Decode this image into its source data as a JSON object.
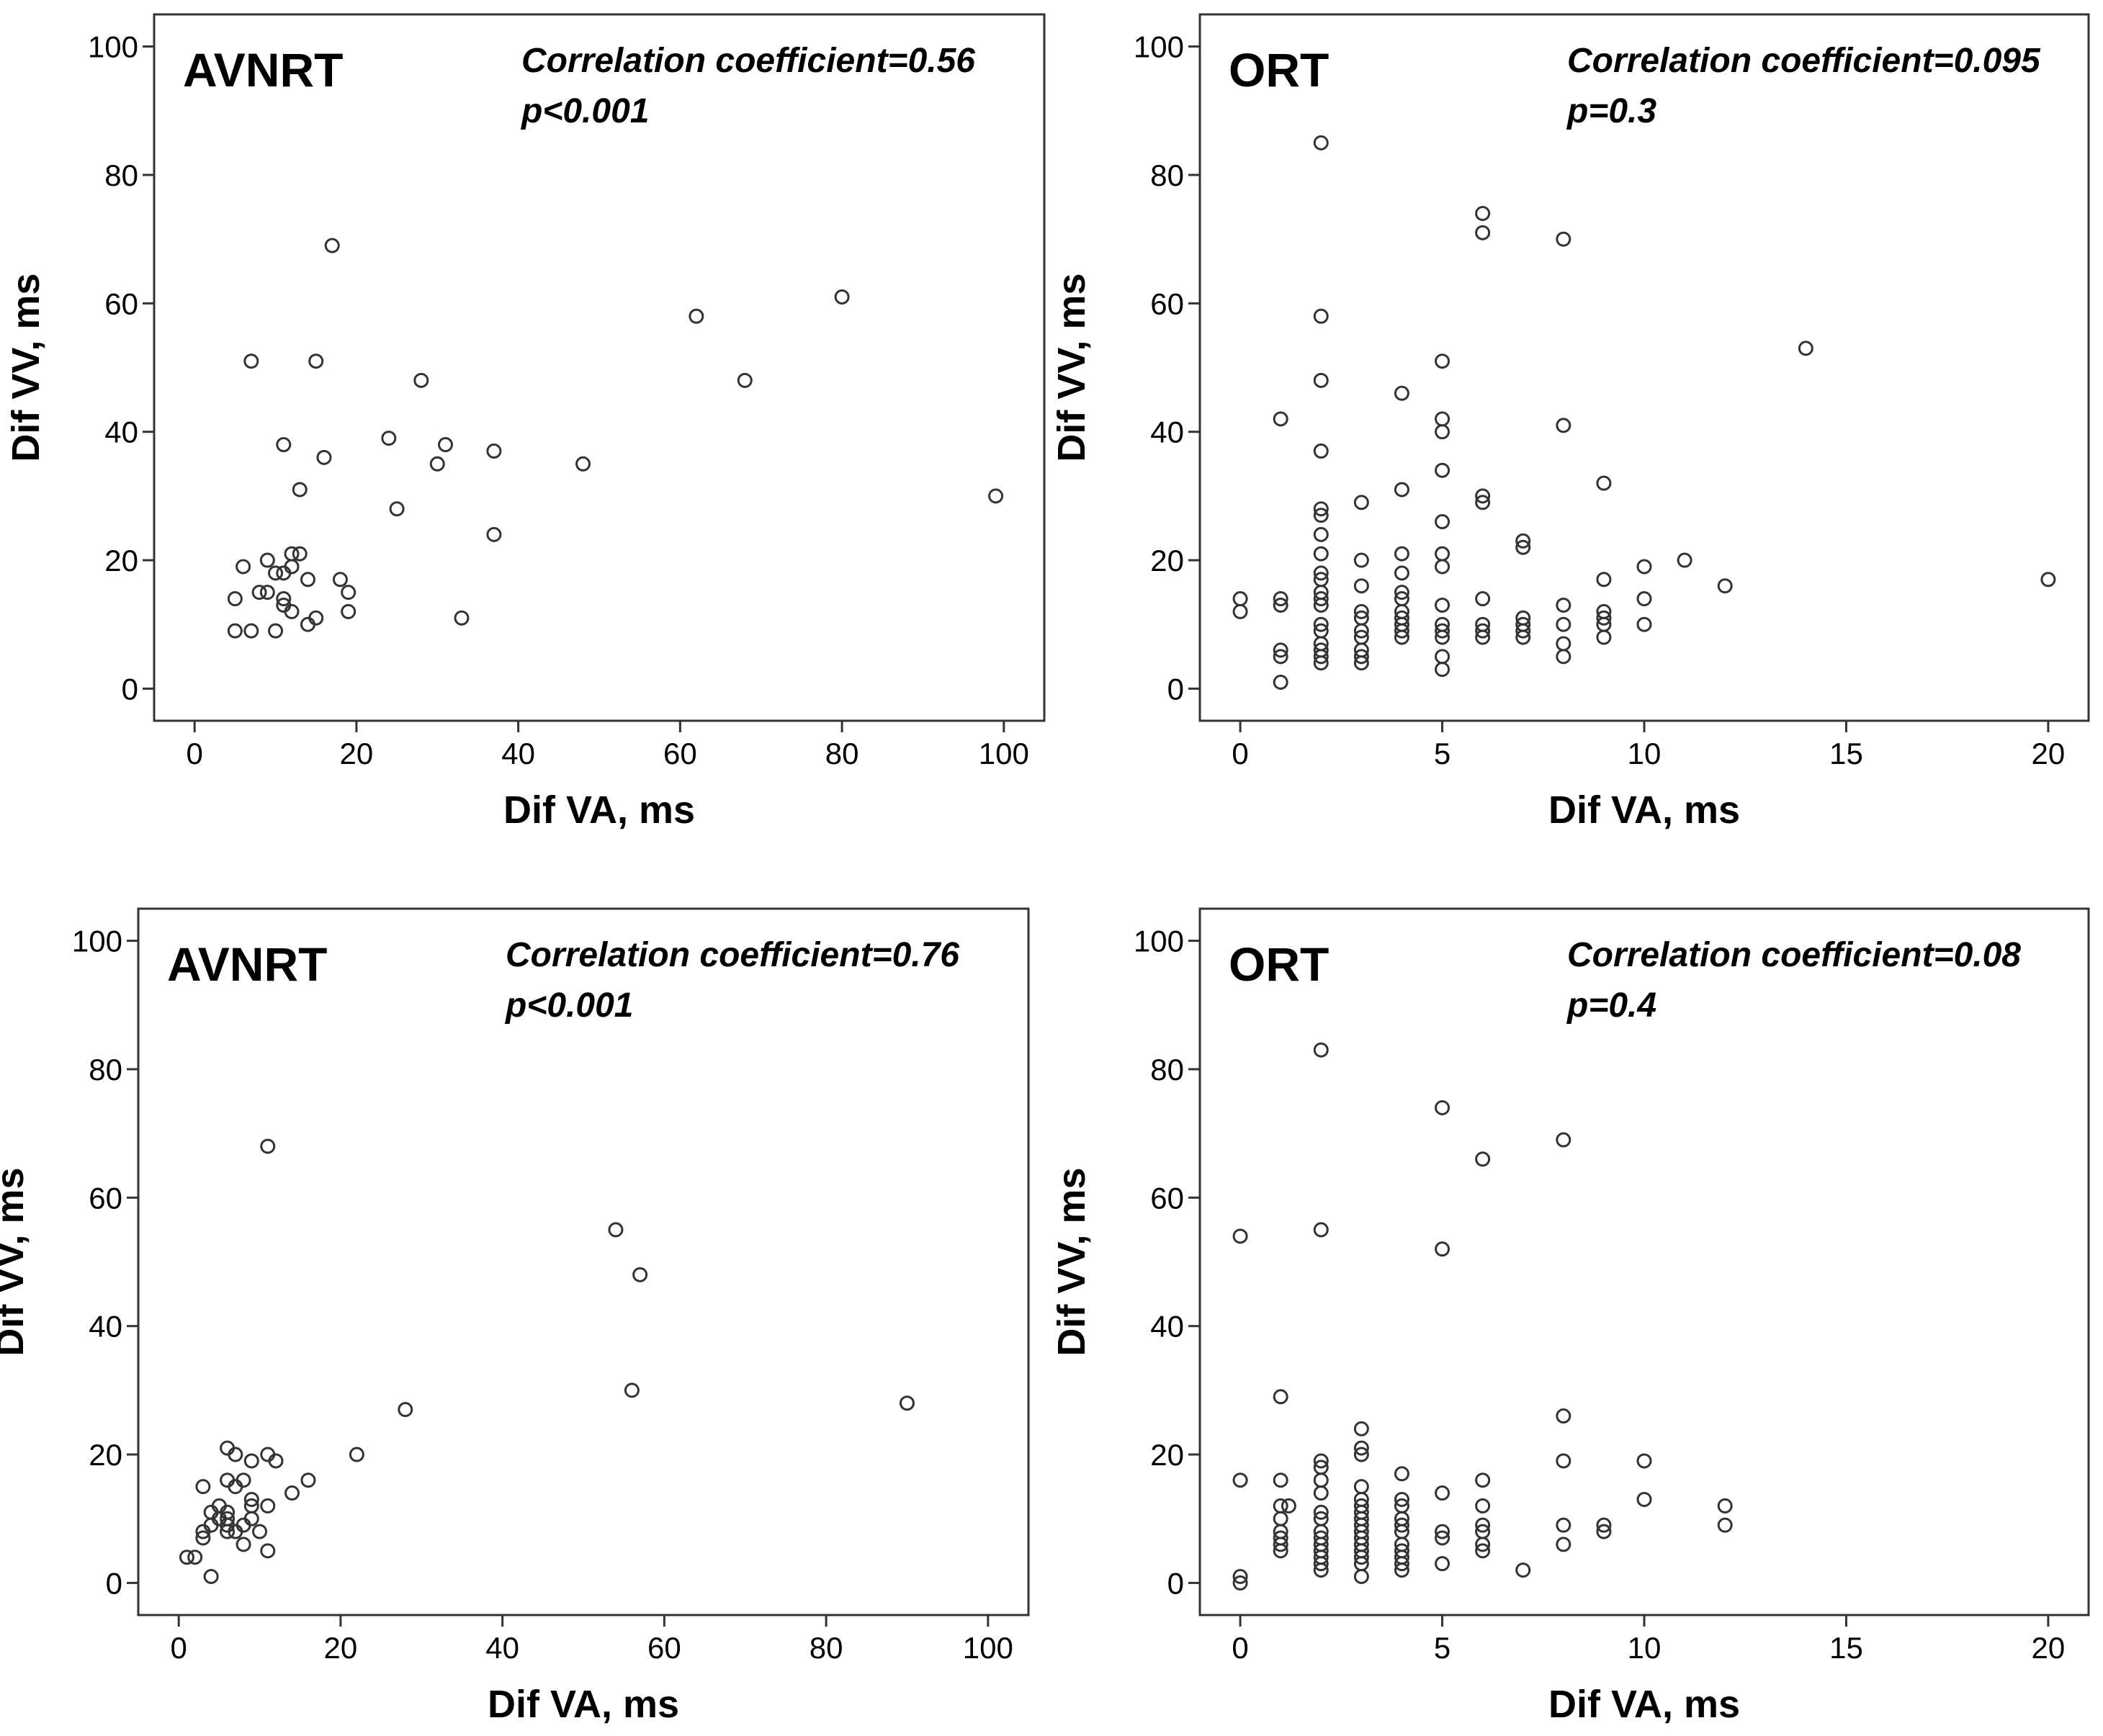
{
  "chart_data": [
    {
      "type": "scatter",
      "panel_label": "AVNRT",
      "annotation_line1": "Correlation coefficient=0.56",
      "annotation_line2": "p<0.001",
      "xlabel": "Dif VA, ms",
      "ylabel": "Dif VV, ms",
      "xlim": [
        -5,
        105
      ],
      "ylim": [
        -5,
        105
      ],
      "xticks": [
        0,
        20,
        40,
        60,
        80,
        100
      ],
      "yticks": [
        0,
        20,
        40,
        60,
        80,
        100
      ],
      "grid": false,
      "marker": "open-circle",
      "points": [
        [
          5,
          9
        ],
        [
          5,
          14
        ],
        [
          6,
          19
        ],
        [
          7,
          9
        ],
        [
          7,
          51
        ],
        [
          8,
          15
        ],
        [
          9,
          20
        ],
        [
          9,
          15
        ],
        [
          10,
          18
        ],
        [
          10,
          9
        ],
        [
          11,
          38
        ],
        [
          11,
          14
        ],
        [
          11,
          18
        ],
        [
          11,
          13
        ],
        [
          12,
          21
        ],
        [
          12,
          19
        ],
        [
          12,
          12
        ],
        [
          13,
          31
        ],
        [
          13,
          21
        ],
        [
          14,
          17
        ],
        [
          14,
          10
        ],
        [
          15,
          51
        ],
        [
          15,
          11
        ],
        [
          16,
          36
        ],
        [
          17,
          69
        ],
        [
          18,
          17
        ],
        [
          19,
          15
        ],
        [
          19,
          12
        ],
        [
          24,
          39
        ],
        [
          25,
          28
        ],
        [
          28,
          48
        ],
        [
          30,
          35
        ],
        [
          31,
          38
        ],
        [
          33,
          11
        ],
        [
          37,
          37
        ],
        [
          37,
          24
        ],
        [
          48,
          35
        ],
        [
          62,
          58
        ],
        [
          68,
          48
        ],
        [
          80,
          61
        ],
        [
          99,
          30
        ]
      ]
    },
    {
      "type": "scatter",
      "panel_label": "ORT",
      "annotation_line1": "Correlation coefficient=0.095",
      "annotation_line2": "p=0.3",
      "xlabel": "Dif VA, ms",
      "ylabel": "Dif VV, ms",
      "xlim": [
        -1,
        21
      ],
      "ylim": [
        -5,
        105
      ],
      "xticks": [
        0,
        5,
        10,
        15,
        20
      ],
      "yticks": [
        0,
        20,
        40,
        60,
        80,
        100
      ],
      "grid": false,
      "marker": "open-circle",
      "points": [
        [
          0,
          14
        ],
        [
          0,
          12
        ],
        [
          1,
          42
        ],
        [
          1,
          14
        ],
        [
          1,
          13
        ],
        [
          1,
          6
        ],
        [
          1,
          5
        ],
        [
          1,
          1
        ],
        [
          2,
          85
        ],
        [
          2,
          58
        ],
        [
          2,
          48
        ],
        [
          2,
          37
        ],
        [
          2,
          28
        ],
        [
          2,
          27
        ],
        [
          2,
          24
        ],
        [
          2,
          21
        ],
        [
          2,
          18
        ],
        [
          2,
          17
        ],
        [
          2,
          15
        ],
        [
          2,
          14
        ],
        [
          2,
          13
        ],
        [
          2,
          10
        ],
        [
          2,
          9
        ],
        [
          2,
          7
        ],
        [
          2,
          6
        ],
        [
          2,
          5
        ],
        [
          2,
          4
        ],
        [
          3,
          29
        ],
        [
          3,
          20
        ],
        [
          3,
          16
        ],
        [
          3,
          12
        ],
        [
          3,
          11
        ],
        [
          3,
          9
        ],
        [
          3,
          8
        ],
        [
          3,
          6
        ],
        [
          3,
          5
        ],
        [
          3,
          4
        ],
        [
          4,
          46
        ],
        [
          4,
          31
        ],
        [
          4,
          21
        ],
        [
          4,
          18
        ],
        [
          4,
          15
        ],
        [
          4,
          14
        ],
        [
          4,
          12
        ],
        [
          4,
          11
        ],
        [
          4,
          10
        ],
        [
          4,
          9
        ],
        [
          4,
          8
        ],
        [
          5,
          51
        ],
        [
          5,
          42
        ],
        [
          5,
          40
        ],
        [
          5,
          34
        ],
        [
          5,
          26
        ],
        [
          5,
          21
        ],
        [
          5,
          19
        ],
        [
          5,
          13
        ],
        [
          5,
          10
        ],
        [
          5,
          9
        ],
        [
          5,
          8
        ],
        [
          5,
          5
        ],
        [
          5,
          3
        ],
        [
          6,
          74
        ],
        [
          6,
          71
        ],
        [
          6,
          30
        ],
        [
          6,
          29
        ],
        [
          6,
          14
        ],
        [
          6,
          10
        ],
        [
          6,
          9
        ],
        [
          6,
          8
        ],
        [
          7,
          23
        ],
        [
          7,
          22
        ],
        [
          7,
          11
        ],
        [
          7,
          10
        ],
        [
          7,
          9
        ],
        [
          7,
          8
        ],
        [
          8,
          70
        ],
        [
          8,
          41
        ],
        [
          8,
          13
        ],
        [
          8,
          10
        ],
        [
          8,
          7
        ],
        [
          8,
          5
        ],
        [
          9,
          32
        ],
        [
          9,
          17
        ],
        [
          9,
          12
        ],
        [
          9,
          11
        ],
        [
          9,
          10
        ],
        [
          9,
          8
        ],
        [
          10,
          19
        ],
        [
          10,
          14
        ],
        [
          10,
          10
        ],
        [
          11,
          20
        ],
        [
          12,
          16
        ],
        [
          14,
          53
        ],
        [
          20,
          17
        ]
      ]
    },
    {
      "type": "scatter",
      "panel_label": "AVNRT",
      "annotation_line1": "Correlation coefficient=0.76",
      "annotation_line2": "p<0.001",
      "xlabel": "Dif VA, ms",
      "ylabel": "Dif VV, ms",
      "xlim": [
        -5,
        105
      ],
      "ylim": [
        -5,
        105
      ],
      "xticks": [
        0,
        20,
        40,
        60,
        80,
        100
      ],
      "yticks": [
        0,
        20,
        40,
        60,
        80,
        100
      ],
      "grid": false,
      "marker": "open-circle",
      "points": [
        [
          1,
          4
        ],
        [
          2,
          4
        ],
        [
          3,
          15
        ],
        [
          3,
          8
        ],
        [
          3,
          7
        ],
        [
          4,
          11
        ],
        [
          4,
          9
        ],
        [
          4,
          1
        ],
        [
          5,
          12
        ],
        [
          5,
          10
        ],
        [
          6,
          21
        ],
        [
          6,
          16
        ],
        [
          6,
          11
        ],
        [
          6,
          10
        ],
        [
          6,
          9
        ],
        [
          6,
          8
        ],
        [
          7,
          20
        ],
        [
          7,
          15
        ],
        [
          7,
          8
        ],
        [
          8,
          16
        ],
        [
          8,
          9
        ],
        [
          8,
          6
        ],
        [
          9,
          19
        ],
        [
          9,
          13
        ],
        [
          9,
          12
        ],
        [
          9,
          10
        ],
        [
          10,
          8
        ],
        [
          11,
          68
        ],
        [
          11,
          20
        ],
        [
          11,
          12
        ],
        [
          11,
          5
        ],
        [
          12,
          19
        ],
        [
          14,
          14
        ],
        [
          16,
          16
        ],
        [
          22,
          20
        ],
        [
          28,
          27
        ],
        [
          54,
          55
        ],
        [
          56,
          30
        ],
        [
          57,
          48
        ],
        [
          90,
          28
        ]
      ]
    },
    {
      "type": "scatter",
      "panel_label": "ORT",
      "annotation_line1": "Correlation coefficient=0.08",
      "annotation_line2": "p=0.4",
      "xlabel": "Dif VA, ms",
      "ylabel": "Dif VV, ms",
      "xlim": [
        -1,
        21
      ],
      "ylim": [
        -5,
        105
      ],
      "xticks": [
        0,
        5,
        10,
        15,
        20
      ],
      "yticks": [
        0,
        20,
        40,
        60,
        80,
        100
      ],
      "grid": false,
      "marker": "open-circle",
      "points": [
        [
          0,
          54
        ],
        [
          0,
          16
        ],
        [
          0,
          1
        ],
        [
          0,
          0
        ],
        [
          1,
          29
        ],
        [
          1,
          16
        ],
        [
          1,
          12
        ],
        [
          1,
          10
        ],
        [
          1,
          8
        ],
        [
          1,
          7
        ],
        [
          1,
          6
        ],
        [
          1,
          5
        ],
        [
          1.2,
          12
        ],
        [
          2,
          83
        ],
        [
          2,
          55
        ],
        [
          2,
          19
        ],
        [
          2,
          18
        ],
        [
          2,
          16
        ],
        [
          2,
          14
        ],
        [
          2,
          11
        ],
        [
          2,
          10
        ],
        [
          2,
          8
        ],
        [
          2,
          7
        ],
        [
          2,
          6
        ],
        [
          2,
          5
        ],
        [
          2,
          4
        ],
        [
          2,
          3
        ],
        [
          2,
          2
        ],
        [
          3,
          24
        ],
        [
          3,
          21
        ],
        [
          3,
          20
        ],
        [
          3,
          15
        ],
        [
          3,
          13
        ],
        [
          3,
          12
        ],
        [
          3,
          11
        ],
        [
          3,
          10
        ],
        [
          3,
          9
        ],
        [
          3,
          8
        ],
        [
          3,
          7
        ],
        [
          3,
          6
        ],
        [
          3,
          5
        ],
        [
          3,
          4
        ],
        [
          3,
          3
        ],
        [
          3,
          1
        ],
        [
          4,
          17
        ],
        [
          4,
          13
        ],
        [
          4,
          12
        ],
        [
          4,
          10
        ],
        [
          4,
          9
        ],
        [
          4,
          8
        ],
        [
          4,
          6
        ],
        [
          4,
          5
        ],
        [
          4,
          4
        ],
        [
          4,
          3
        ],
        [
          4,
          2
        ],
        [
          5,
          74
        ],
        [
          5,
          52
        ],
        [
          5,
          14
        ],
        [
          5,
          8
        ],
        [
          5,
          7
        ],
        [
          5,
          3
        ],
        [
          6,
          66
        ],
        [
          6,
          16
        ],
        [
          6,
          12
        ],
        [
          6,
          9
        ],
        [
          6,
          8
        ],
        [
          6,
          6
        ],
        [
          6,
          5
        ],
        [
          7,
          2
        ],
        [
          8,
          69
        ],
        [
          8,
          26
        ],
        [
          8,
          19
        ],
        [
          8,
          9
        ],
        [
          8,
          6
        ],
        [
          9,
          9
        ],
        [
          9,
          8
        ],
        [
          10,
          19
        ],
        [
          10,
          13
        ],
        [
          12,
          12
        ],
        [
          12,
          9
        ]
      ]
    }
  ]
}
